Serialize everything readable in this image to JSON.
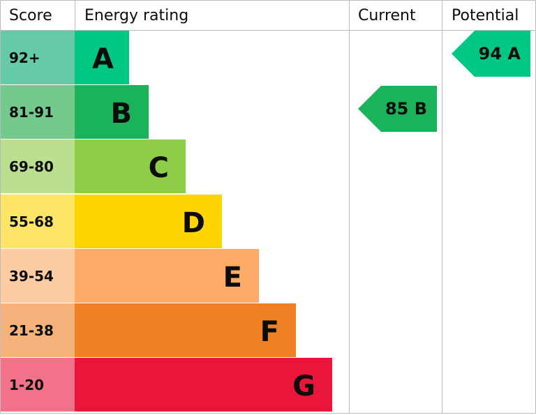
{
  "chart_data": {
    "type": "table",
    "headers": {
      "score": "Score",
      "rating": "Energy rating",
      "current": "Current",
      "potential": "Potential"
    },
    "bands": [
      {
        "letter": "A",
        "range": "92+",
        "color": "#00c781",
        "light": "#66c9a7"
      },
      {
        "letter": "B",
        "range": "81-91",
        "color": "#1bb35a",
        "light": "#74ca8c"
      },
      {
        "letter": "C",
        "range": "69-80",
        "color": "#8dce46",
        "light": "#badf8f"
      },
      {
        "letter": "D",
        "range": "55-68",
        "color": "#ffd500",
        "light": "#ffe566"
      },
      {
        "letter": "E",
        "range": "39-54",
        "color": "#fcaa65",
        "light": "#fdcca2"
      },
      {
        "letter": "F",
        "range": "21-38",
        "color": "#ef8023",
        "light": "#f5b37b"
      },
      {
        "letter": "G",
        "range": "1-20",
        "color": "#e9153b",
        "light": "#f27389"
      }
    ],
    "current": {
      "value": 85,
      "band": "B",
      "label": "85 B",
      "color": "#1bb35a"
    },
    "potential": {
      "value": 94,
      "band": "A",
      "label": "94 A",
      "color": "#00c781"
    }
  }
}
